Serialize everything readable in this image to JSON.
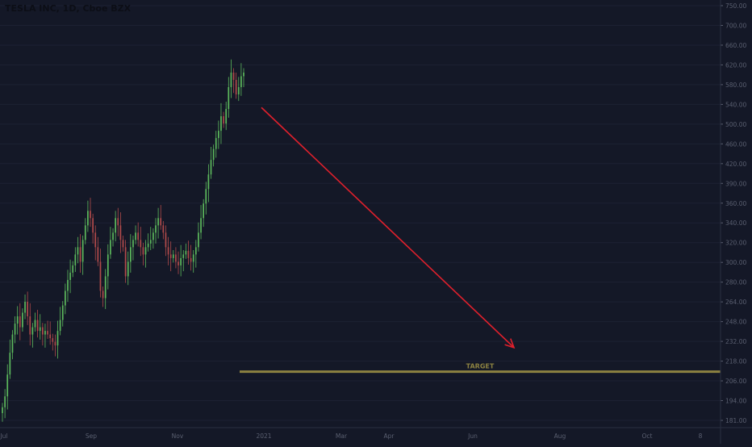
{
  "header": {
    "title": "TESLA INC, 1D, Cboe BZX"
  },
  "annotations": {
    "target_label": "TARGET"
  },
  "colors": {
    "background": "#141827",
    "up": "#5cb85c",
    "down": "#b04a4a",
    "arrow": "#e0202c",
    "target": "#8c8241",
    "axis_text": "#5a5f70",
    "grid": "#1c2133"
  },
  "chart_data": {
    "type": "candlestick",
    "title": "TESLA INC, 1D, Cboe BZX",
    "ylim": [
      182,
      752
    ],
    "y_ticks": [
      "750.00",
      "700.00",
      "660.00",
      "620.00",
      "580.00",
      "540.00",
      "500.00",
      "460.00",
      "420.00",
      "390.00",
      "360.00",
      "340.00",
      "320.00",
      "300.00",
      "280.00",
      "264.00",
      "248.00",
      "232.00",
      "218.00",
      "206.00",
      "194.00",
      "181.00"
    ],
    "x_ticks": [
      "Jul",
      "Sep",
      "Nov",
      "2021",
      "Mar",
      "Apr",
      "Jun",
      "Aug",
      "Oct",
      "8"
    ],
    "closes": [
      200,
      215,
      245,
      275,
      300,
      315,
      325,
      310,
      330,
      345,
      325,
      300,
      310,
      320,
      305,
      310,
      300,
      305,
      300,
      295,
      290,
      285,
      305,
      320,
      340,
      360,
      375,
      385,
      395,
      410,
      420,
      400,
      430,
      450,
      470,
      460,
      440,
      420,
      400,
      360,
      350,
      380,
      410,
      430,
      440,
      460,
      450,
      430,
      420,
      380,
      400,
      420,
      430,
      440,
      430,
      420,
      410,
      420,
      425,
      430,
      440,
      450,
      460,
      450,
      440,
      420,
      410,
      405,
      410,
      400,
      395,
      405,
      410,
      415,
      405,
      400,
      410,
      420,
      440,
      460,
      480,
      500,
      520,
      540,
      555,
      570,
      580,
      600,
      590,
      610,
      640,
      660,
      650,
      630,
      640,
      655,
      660
    ],
    "target_price": 249,
    "arrow": {
      "from_price": 612,
      "to_price": 282
    }
  }
}
